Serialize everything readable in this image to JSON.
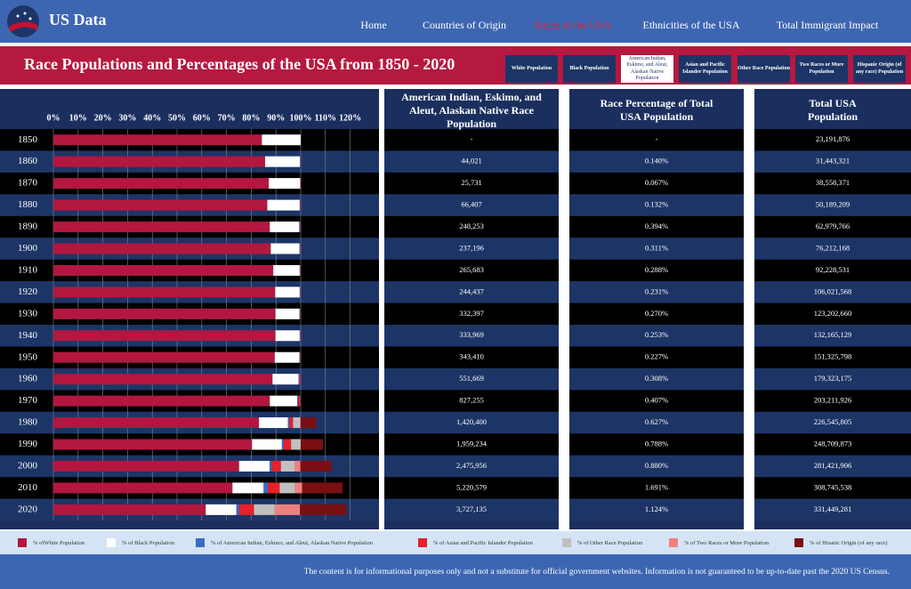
{
  "header": {
    "logo": "US Data",
    "nav": [
      "Home",
      "Countries of Origin",
      "Races of the USA",
      "Ethnicities of the USA",
      "Total Immigrant Impact"
    ],
    "active_nav": 2
  },
  "banner": {
    "title": "Race Populations and Percentages of the USA from 1850 - 2020",
    "buttons": [
      "White Population",
      "Black Population",
      "American Indian, Eskimo, and Aleut, Alaskan Native Population",
      "Asian and Pacific Islander Population",
      "Other Race Population",
      "Two Races or More Population",
      "Hispanic Origin (of any race) Population"
    ],
    "active_button": 2
  },
  "chart_data": {
    "type": "stacked-bar",
    "orientation": "horizontal",
    "categories": [
      "1850",
      "1860",
      "1870",
      "1880",
      "1890",
      "1900",
      "1910",
      "1920",
      "1930",
      "1940",
      "1950",
      "1960",
      "1970",
      "1980",
      "1990",
      "2000",
      "2010",
      "2020"
    ],
    "series": [
      {
        "name": "% ofWhite Population",
        "color": "#b3173f",
        "values": [
          84.3,
          85.6,
          87.1,
          86.5,
          87.5,
          87.9,
          88.9,
          89.7,
          89.8,
          89.8,
          89.5,
          88.6,
          87.5,
          83.1,
          80.3,
          75.1,
          72.4,
          61.6
        ]
      },
      {
        "name": "% of Black Population",
        "color": "#ffffff",
        "values": [
          15.7,
          14.1,
          12.7,
          13.1,
          11.9,
          11.6,
          10.7,
          9.9,
          9.7,
          9.8,
          10.0,
          10.5,
          11.1,
          11.7,
          12.1,
          12.3,
          12.6,
          12.4
        ]
      },
      {
        "name": "% of American Indian, Eskimo, and Aleut, Alaskan Native Population",
        "color": "#3b6cc0",
        "values": [
          null,
          0.14,
          0.067,
          0.132,
          0.394,
          0.311,
          0.288,
          0.231,
          0.27,
          0.253,
          0.227,
          0.308,
          0.407,
          0.627,
          0.788,
          0.88,
          1.691,
          1.124
        ]
      },
      {
        "name": "% of Asian and Pacific Islander Population",
        "color": "#e8202a",
        "values": [
          null,
          0.1,
          0.2,
          0.2,
          0.2,
          0.2,
          0.2,
          0.2,
          0.2,
          0.2,
          0.2,
          0.5,
          0.8,
          1.5,
          2.9,
          3.7,
          4.8,
          6.0
        ]
      },
      {
        "name": "% of Other Race Population",
        "color": "#c0c0c0",
        "values": [
          null,
          null,
          null,
          null,
          null,
          null,
          null,
          null,
          null,
          null,
          null,
          null,
          null,
          3.0,
          3.9,
          5.5,
          6.2,
          8.4
        ]
      },
      {
        "name": "% of Two Races or More Population",
        "color": "#f08080",
        "values": [
          null,
          null,
          null,
          null,
          null,
          null,
          null,
          null,
          null,
          null,
          null,
          null,
          null,
          null,
          null,
          2.4,
          2.9,
          10.2
        ]
      },
      {
        "name": "% of Hisanic Origin (of any race)",
        "color": "#7a0f14",
        "values": [
          null,
          null,
          null,
          null,
          null,
          null,
          null,
          null,
          null,
          null,
          null,
          null,
          null,
          6.4,
          9.0,
          12.5,
          16.3,
          18.7
        ]
      }
    ],
    "xlim": [
      0,
      120
    ],
    "xticks": [
      {
        "value": 0,
        "label": "0%"
      },
      {
        "value": 10,
        "label": "10%"
      },
      {
        "value": 20,
        "label": "20%"
      },
      {
        "value": 30,
        "label": "30%"
      },
      {
        "value": 40,
        "label": "40%"
      },
      {
        "value": 50,
        "label": "50%"
      },
      {
        "value": 60,
        "label": "60%"
      },
      {
        "value": 70,
        "label": "70%"
      },
      {
        "value": 80,
        "label": "80%"
      },
      {
        "value": 90,
        "label": "90%"
      },
      {
        "value": 100,
        "label": "100%"
      },
      {
        "value": 110,
        "label": "110%"
      },
      {
        "value": 120,
        "label": "120%"
      }
    ],
    "grid": true
  },
  "table": {
    "columns": [
      "American Indian, Eskimo, and Aleut, Alaskan Native Race Population",
      "Race Percentage of Total USA Population",
      "Total USA Population"
    ],
    "rows": [
      [
        "-",
        "-",
        "23,191,876"
      ],
      [
        "44,021",
        "0.140%",
        "31,443,321"
      ],
      [
        "25,731",
        "0.067%",
        "38,558,371"
      ],
      [
        "66,407",
        "0.132%",
        "50,189,209"
      ],
      [
        "248,253",
        "0.394%",
        "62,979,766"
      ],
      [
        "237,196",
        "0.311%",
        "76,212,168"
      ],
      [
        "265,683",
        "0.288%",
        "92,228,531"
      ],
      [
        "244,437",
        "0.231%",
        "106,021,568"
      ],
      [
        "332,397",
        "0.270%",
        "123,202,660"
      ],
      [
        "333,969",
        "0.253%",
        "132,165,129"
      ],
      [
        "343,410",
        "0.227%",
        "151,325,798"
      ],
      [
        "551,669",
        "0.308%",
        "179,323,175"
      ],
      [
        "827,255",
        "0.407%",
        "203,211,926"
      ],
      [
        "1,420,400",
        "0.627%",
        "226,545,805"
      ],
      [
        "1,959,234",
        "0.788%",
        "248,709,873"
      ],
      [
        "2,475,956",
        "0.880%",
        "281,421,906"
      ],
      [
        "5,220,579",
        "1.691%",
        "308,745,538"
      ],
      [
        "3,727,135",
        "1.124%",
        "331,449,281"
      ]
    ]
  },
  "footer": {
    "text": "The content is for informational purposes only and not a substitute for official government websites. Information is not guaranteed to be up-to-date past the 2020 US Census."
  }
}
